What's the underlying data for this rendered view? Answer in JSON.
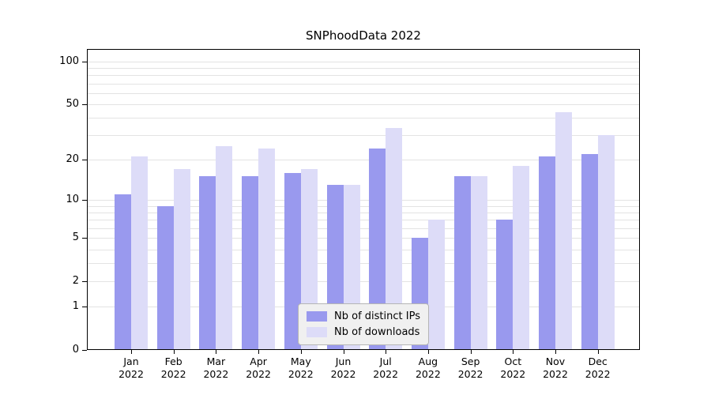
{
  "title": "SNPhoodData 2022",
  "chart_data": {
    "type": "bar",
    "title": "SNPhoodData 2022",
    "categories": [
      "Jan",
      "Feb",
      "Mar",
      "Apr",
      "May",
      "Jun",
      "Jul",
      "Aug",
      "Sep",
      "Oct",
      "Nov",
      "Dec"
    ],
    "category_year": "2022",
    "series": [
      {
        "name": "Nb of distinct IPs",
        "color": "#9999ee",
        "values": [
          11,
          9,
          15,
          15,
          16,
          13,
          24,
          5,
          15,
          7,
          21,
          22
        ]
      },
      {
        "name": "Nb of downloads",
        "color": "#dddcf8",
        "values": [
          21,
          17,
          25,
          24,
          17,
          13,
          34,
          7,
          15,
          18,
          44,
          30
        ]
      }
    ],
    "xlabel": "",
    "ylabel": "",
    "yscale": "log1p",
    "ylim": [
      0,
      122
    ],
    "yticks": [
      100,
      50,
      20,
      10,
      5,
      2,
      1,
      0
    ],
    "grid": "horizontal",
    "grid_values": [
      1,
      2,
      3,
      4,
      5,
      6,
      7,
      8,
      9,
      10,
      20,
      30,
      40,
      50,
      60,
      70,
      80,
      90,
      100
    ],
    "grid_color": "#e3e3e3",
    "legend_position": "lower center",
    "legend_bg": "#f0f0f0"
  }
}
